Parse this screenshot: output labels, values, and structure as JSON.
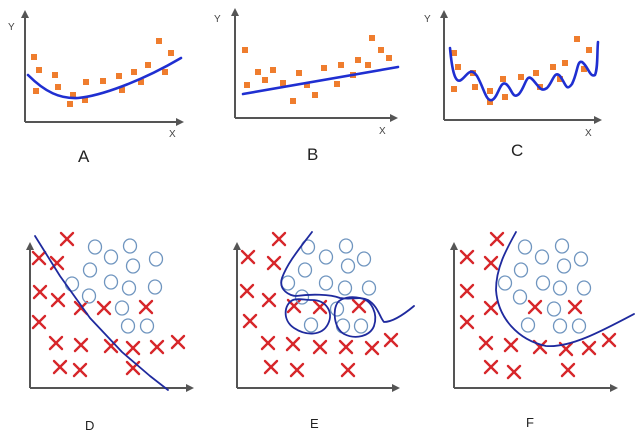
{
  "regression_panels": [
    {
      "id": "A",
      "label": "A",
      "x_axis": "X",
      "y_axis": "Y",
      "fit": "good-fit curve"
    },
    {
      "id": "B",
      "label": "B",
      "x_axis": "X",
      "y_axis": "Y",
      "fit": "underfit straight line"
    },
    {
      "id": "C",
      "label": "C",
      "x_axis": "X",
      "y_axis": "Y",
      "fit": "overfit wiggly curve"
    }
  ],
  "classification_panels": [
    {
      "id": "D",
      "label": "D",
      "boundary": "underfit straight line"
    },
    {
      "id": "E",
      "label": "E",
      "boundary": "overfit complex boundary"
    },
    {
      "id": "F",
      "label": "F",
      "boundary": "good-fit curved boundary"
    }
  ],
  "colors": {
    "points": "#ef7d2e",
    "fit_curve": "#1f2fd1",
    "boundary": "#1f2a9e",
    "cross": "#d7262a",
    "circle": "#6f95bf",
    "axis": "#555555"
  },
  "icons": {
    "class_a_marker": "cross-marker",
    "class_b_marker": "circle-marker"
  }
}
